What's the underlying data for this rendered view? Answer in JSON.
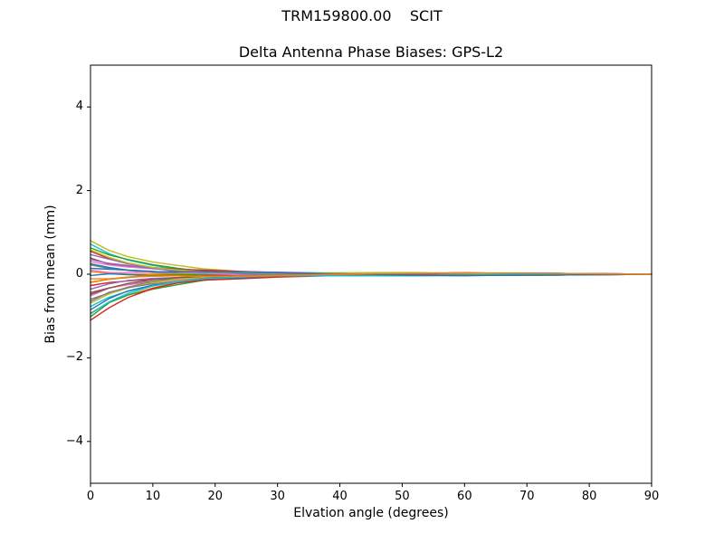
{
  "titles": {
    "suptitle": "TRM159800.00    SCIT",
    "axes_title": "Delta Antenna Phase Biases: GPS-L2"
  },
  "chart_data": {
    "type": "line",
    "suptitle": "TRM159800.00    SCIT",
    "title": "Delta Antenna Phase Biases: GPS-L2",
    "xlabel": "Elvation angle (degrees)",
    "ylabel": "Bias from mean (mm)",
    "xlim": [
      0,
      90
    ],
    "ylim": [
      -5,
      5
    ],
    "xticks": [
      0,
      10,
      20,
      30,
      40,
      50,
      60,
      70,
      80,
      90
    ],
    "yticks": [
      -4,
      -2,
      0,
      2,
      4
    ],
    "grid": false,
    "legend": "none",
    "x": [
      0,
      3,
      6,
      10,
      14,
      18,
      24,
      30,
      40,
      50,
      60,
      75,
      90
    ],
    "series": [
      {
        "name": "s01",
        "color": "#bcbd22",
        "values": [
          0.8,
          0.57,
          0.42,
          0.29,
          0.21,
          0.13,
          0.07,
          0.03,
          0.0,
          -0.02,
          -0.02,
          0.01,
          0.0
        ]
      },
      {
        "name": "s02",
        "color": "#17becf",
        "values": [
          0.72,
          0.49,
          0.34,
          0.21,
          0.13,
          0.08,
          0.05,
          0.03,
          0.03,
          0.04,
          0.02,
          -0.01,
          0.0
        ]
      },
      {
        "name": "s03",
        "color": "#2ca02c",
        "values": [
          0.63,
          0.46,
          0.35,
          0.23,
          0.14,
          0.07,
          0.02,
          0.01,
          0.01,
          0.03,
          0.03,
          0.02,
          0.0
        ]
      },
      {
        "name": "s04",
        "color": "#d62728",
        "values": [
          0.55,
          0.37,
          0.25,
          0.16,
          0.12,
          0.1,
          0.07,
          0.04,
          0.01,
          -0.01,
          -0.03,
          -0.02,
          0.0
        ]
      },
      {
        "name": "s05",
        "color": "#9467bd",
        "values": [
          0.47,
          0.36,
          0.25,
          0.14,
          0.07,
          0.06,
          0.06,
          0.05,
          0.02,
          -0.02,
          -0.03,
          0.01,
          0.0
        ]
      },
      {
        "name": "s06",
        "color": "#8c564b",
        "values": [
          0.39,
          0.24,
          0.19,
          0.15,
          0.12,
          0.06,
          0.01,
          -0.01,
          0.0,
          0.02,
          0.03,
          -0.01,
          0.0
        ]
      },
      {
        "name": "s07",
        "color": "#e377c2",
        "values": [
          0.3,
          0.22,
          0.17,
          0.13,
          0.1,
          0.06,
          0.03,
          0.01,
          -0.01,
          -0.03,
          -0.02,
          0.01,
          0.0
        ]
      },
      {
        "name": "s08",
        "color": "#7f7f7f",
        "values": [
          0.22,
          0.14,
          0.09,
          0.04,
          0.02,
          0.01,
          0.01,
          0.01,
          0.02,
          0.03,
          0.02,
          -0.01,
          0.0
        ]
      },
      {
        "name": "s09",
        "color": "#1f77b4",
        "values": [
          0.14,
          0.12,
          0.1,
          0.07,
          0.03,
          0.0,
          -0.02,
          -0.01,
          0.0,
          0.02,
          0.03,
          0.02,
          0.0
        ]
      },
      {
        "name": "s10",
        "color": "#ff7f0e",
        "values": [
          0.06,
          0.02,
          0.0,
          0.0,
          0.01,
          0.03,
          0.03,
          0.02,
          0.0,
          -0.02,
          -0.03,
          -0.02,
          0.0
        ]
      },
      {
        "name": "s11",
        "color": "#1f77b4",
        "values": [
          -0.03,
          0.01,
          -0.01,
          -0.03,
          -0.04,
          -0.01,
          0.02,
          0.03,
          0.01,
          -0.02,
          -0.03,
          0.01,
          0.0
        ]
      },
      {
        "name": "s12",
        "color": "#ff7f0e",
        "values": [
          -0.11,
          -0.11,
          -0.07,
          -0.02,
          0.01,
          -0.01,
          -0.03,
          -0.03,
          -0.01,
          0.02,
          0.03,
          -0.01,
          0.0
        ]
      },
      {
        "name": "s13",
        "color": "#2ca02c",
        "values": [
          -0.19,
          -0.12,
          -0.08,
          -0.03,
          -0.01,
          -0.01,
          -0.01,
          -0.01,
          -0.02,
          -0.03,
          -0.02,
          0.01,
          0.0
        ]
      },
      {
        "name": "s14",
        "color": "#d62728",
        "values": [
          -0.27,
          -0.2,
          -0.16,
          -0.12,
          -0.09,
          -0.06,
          -0.03,
          -0.01,
          0.01,
          0.03,
          0.02,
          -0.01,
          0.0
        ]
      },
      {
        "name": "s15",
        "color": "#9467bd",
        "values": [
          -0.36,
          -0.23,
          -0.15,
          -0.1,
          -0.08,
          -0.07,
          -0.06,
          -0.03,
          -0.01,
          0.02,
          0.03,
          0.02,
          0.0
        ]
      },
      {
        "name": "s16",
        "color": "#8c564b",
        "values": [
          -0.44,
          -0.33,
          -0.25,
          -0.17,
          -0.1,
          -0.04,
          -0.01,
          0.0,
          -0.01,
          -0.02,
          -0.03,
          -0.02,
          0.0
        ]
      },
      {
        "name": "s17",
        "color": "#e377c2",
        "values": [
          -0.52,
          -0.33,
          -0.25,
          -0.19,
          -0.14,
          -0.08,
          -0.02,
          0.01,
          0.0,
          -0.03,
          -0.03,
          0.01,
          0.0
        ]
      },
      {
        "name": "s18",
        "color": "#7f7f7f",
        "values": [
          -0.6,
          -0.45,
          -0.31,
          -0.18,
          -0.1,
          -0.07,
          -0.07,
          -0.05,
          -0.02,
          0.01,
          0.03,
          -0.01,
          0.0
        ]
      },
      {
        "name": "s19",
        "color": "#bcbd22",
        "values": [
          -0.69,
          -0.47,
          -0.33,
          -0.2,
          -0.12,
          -0.08,
          -0.05,
          -0.03,
          -0.03,
          -0.04,
          -0.02,
          0.01,
          0.0
        ]
      },
      {
        "name": "s20",
        "color": "#17becf",
        "values": [
          -0.77,
          -0.55,
          -0.41,
          -0.28,
          -0.2,
          -0.13,
          -0.07,
          -0.03,
          0.0,
          0.02,
          0.02,
          -0.01,
          0.0
        ]
      },
      {
        "name": "s21",
        "color": "#1f77b4",
        "values": [
          -0.85,
          -0.58,
          -0.4,
          -0.26,
          -0.19,
          -0.14,
          -0.1,
          -0.05,
          -0.02,
          0.01,
          0.03,
          0.02,
          0.0
        ]
      },
      {
        "name": "s22",
        "color": "#ff7f0e",
        "values": [
          -0.93,
          -0.67,
          -0.5,
          -0.33,
          -0.2,
          -0.11,
          -0.04,
          -0.02,
          -0.02,
          -0.03,
          -0.03,
          -0.02,
          0.0
        ]
      },
      {
        "name": "s23",
        "color": "#2ca02c",
        "values": [
          -1.02,
          -0.68,
          -0.5,
          -0.36,
          -0.25,
          -0.15,
          -0.06,
          -0.01,
          -0.01,
          -0.03,
          -0.03,
          0.01,
          0.0
        ]
      },
      {
        "name": "s24",
        "color": "#d62728",
        "values": [
          -1.1,
          -0.8,
          -0.56,
          -0.34,
          -0.21,
          -0.14,
          -0.11,
          -0.07,
          -0.03,
          0.01,
          0.03,
          -0.01,
          0.0
        ]
      },
      {
        "name": "s25",
        "color": "#9467bd",
        "values": [
          0.35,
          0.26,
          0.21,
          0.14,
          0.08,
          0.03,
          0.0,
          0.0,
          0.01,
          0.02,
          0.03,
          0.02,
          0.0
        ]
      },
      {
        "name": "s26",
        "color": "#8c564b",
        "values": [
          -0.48,
          -0.33,
          -0.22,
          -0.13,
          -0.08,
          -0.05,
          -0.03,
          -0.02,
          -0.03,
          -0.03,
          -0.02,
          0.01,
          0.0
        ]
      },
      {
        "name": "s27",
        "color": "#e377c2",
        "values": [
          0.1,
          0.04,
          0.04,
          0.05,
          0.05,
          0.02,
          -0.01,
          -0.03,
          -0.01,
          0.02,
          0.03,
          -0.01,
          0.0
        ]
      },
      {
        "name": "s28",
        "color": "#7f7f7f",
        "values": [
          -0.65,
          -0.43,
          -0.32,
          -0.23,
          -0.17,
          -0.1,
          -0.03,
          0.0,
          0.0,
          -0.03,
          -0.03,
          0.01,
          0.0
        ]
      },
      {
        "name": "s29",
        "color": "#bcbd22",
        "values": [
          0.58,
          0.4,
          0.27,
          0.16,
          0.1,
          0.06,
          0.04,
          0.02,
          0.03,
          0.04,
          0.02,
          -0.01,
          0.0
        ]
      },
      {
        "name": "s30",
        "color": "#17becf",
        "values": [
          -0.95,
          -0.66,
          -0.46,
          -0.28,
          -0.18,
          -0.11,
          -0.07,
          -0.04,
          -0.04,
          -0.04,
          -0.02,
          0.01,
          0.0
        ]
      },
      {
        "name": "s31",
        "color": "#1f77b4",
        "values": [
          0.25,
          0.16,
          0.1,
          0.06,
          0.06,
          0.06,
          0.05,
          0.03,
          0.01,
          -0.02,
          -0.03,
          -0.02,
          0.0
        ]
      },
      {
        "name": "s32",
        "color": "#ff7f0e",
        "values": [
          -0.2,
          -0.12,
          -0.07,
          -0.05,
          -0.04,
          -0.05,
          -0.05,
          -0.03,
          0.0,
          0.02,
          0.03,
          0.02,
          0.0
        ]
      }
    ]
  }
}
